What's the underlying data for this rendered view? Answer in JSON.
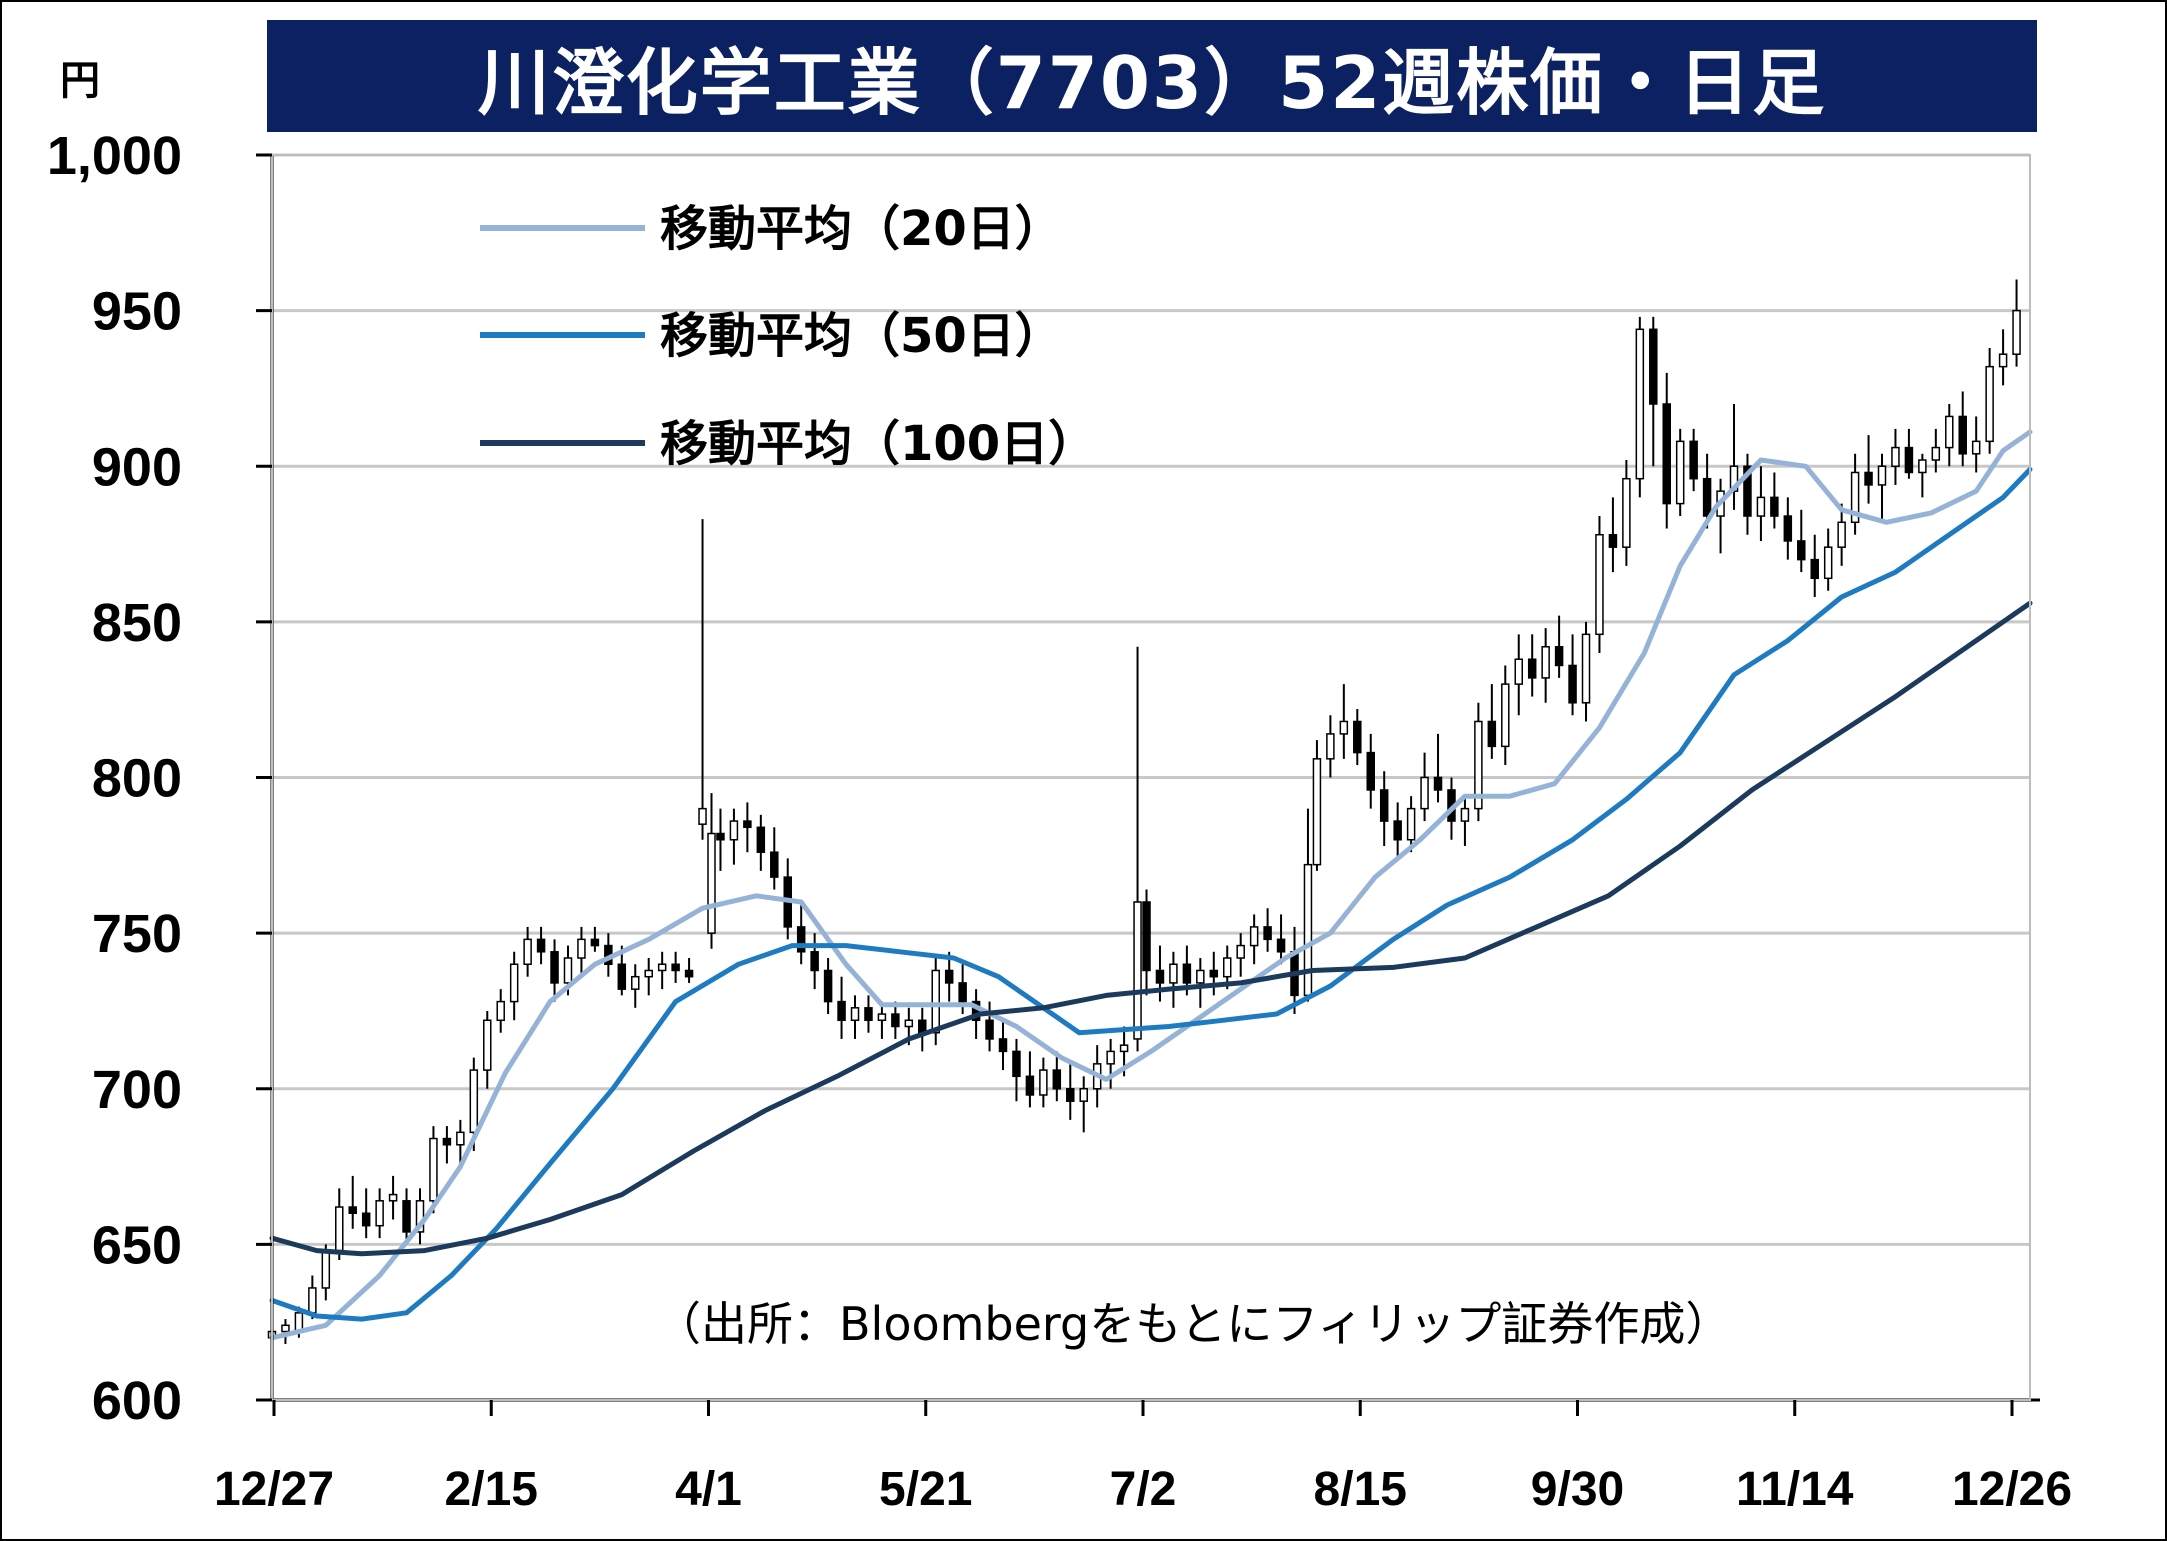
{
  "title": "川澄化学工業（7703）52週株価・日足",
  "unit_label": "円",
  "source_note": "（出所：Bloombergをもとにフィリップ証券作成）",
  "colors": {
    "title_bg": "#0b2161",
    "ma20": "#95b3d7",
    "ma50": "#1f7bc1",
    "ma100": "#1b3a5c",
    "candle_up_fill": "#ffffff",
    "candle_down_fill": "#000000",
    "grid": "#c8c8c8"
  },
  "chart_data": {
    "type": "candlestick",
    "title": "川澄化学工業（7703）52週株価・日足",
    "ylabel": "円",
    "ylim": [
      600,
      1000
    ],
    "yticks": [
      "600",
      "650",
      "700",
      "750",
      "800",
      "850",
      "900",
      "950",
      "1,000"
    ],
    "xticks": [
      "12/27",
      "2/15",
      "4/1",
      "5/21",
      "7/2",
      "8/15",
      "9/30",
      "11/14",
      "12/26"
    ],
    "grid": true,
    "legend_position": "top-left",
    "series": [
      {
        "name": "移動平均（20日）",
        "type": "line",
        "color": "#95b3d7",
        "points": [
          [
            0,
            620
          ],
          [
            12,
            624
          ],
          [
            24,
            640
          ],
          [
            34,
            658
          ],
          [
            42,
            675
          ],
          [
            52,
            705
          ],
          [
            62,
            728
          ],
          [
            72,
            740
          ],
          [
            84,
            748
          ],
          [
            96,
            758
          ],
          [
            108,
            762
          ],
          [
            118,
            760
          ],
          [
            128,
            740
          ],
          [
            136,
            727
          ],
          [
            146,
            727
          ],
          [
            156,
            727
          ],
          [
            166,
            720
          ],
          [
            176,
            710
          ],
          [
            186,
            703
          ],
          [
            196,
            712
          ],
          [
            206,
            722
          ],
          [
            216,
            732
          ],
          [
            226,
            742
          ],
          [
            236,
            750
          ],
          [
            246,
            768
          ],
          [
            256,
            780
          ],
          [
            266,
            794
          ],
          [
            276,
            794
          ],
          [
            286,
            798
          ],
          [
            296,
            816
          ],
          [
            306,
            840
          ],
          [
            314,
            868
          ],
          [
            322,
            887
          ],
          [
            332,
            902
          ],
          [
            342,
            900
          ],
          [
            350,
            886
          ],
          [
            360,
            882
          ],
          [
            370,
            885
          ],
          [
            380,
            892
          ],
          [
            386,
            905
          ],
          [
            392,
            911
          ]
        ]
      },
      {
        "name": "移動平均（50日）",
        "type": "line",
        "color": "#1f7bc1",
        "points": [
          [
            0,
            632
          ],
          [
            10,
            627
          ],
          [
            20,
            626
          ],
          [
            30,
            628
          ],
          [
            40,
            640
          ],
          [
            50,
            655
          ],
          [
            62,
            676
          ],
          [
            76,
            700
          ],
          [
            90,
            728
          ],
          [
            104,
            740
          ],
          [
            116,
            746
          ],
          [
            128,
            746
          ],
          [
            140,
            744
          ],
          [
            152,
            742
          ],
          [
            162,
            736
          ],
          [
            172,
            726
          ],
          [
            180,
            718
          ],
          [
            190,
            719
          ],
          [
            200,
            720
          ],
          [
            212,
            722
          ],
          [
            224,
            724
          ],
          [
            236,
            733
          ],
          [
            250,
            748
          ],
          [
            262,
            759
          ],
          [
            276,
            768
          ],
          [
            290,
            780
          ],
          [
            302,
            793
          ],
          [
            314,
            808
          ],
          [
            326,
            833
          ],
          [
            338,
            844
          ],
          [
            350,
            858
          ],
          [
            362,
            866
          ],
          [
            374,
            878
          ],
          [
            386,
            890
          ],
          [
            392,
            899
          ]
        ]
      },
      {
        "name": "移動平均（100日）",
        "type": "line",
        "color": "#1b3a5c",
        "points": [
          [
            0,
            652
          ],
          [
            10,
            648
          ],
          [
            20,
            647
          ],
          [
            34,
            648
          ],
          [
            48,
            652
          ],
          [
            62,
            658
          ],
          [
            78,
            666
          ],
          [
            94,
            680
          ],
          [
            110,
            693
          ],
          [
            126,
            704
          ],
          [
            142,
            716
          ],
          [
            158,
            724
          ],
          [
            172,
            726
          ],
          [
            186,
            730
          ],
          [
            200,
            732
          ],
          [
            216,
            734
          ],
          [
            232,
            738
          ],
          [
            250,
            739
          ],
          [
            266,
            742
          ],
          [
            282,
            752
          ],
          [
            298,
            762
          ],
          [
            314,
            778
          ],
          [
            330,
            796
          ],
          [
            346,
            811
          ],
          [
            362,
            826
          ],
          [
            378,
            842
          ],
          [
            392,
            856
          ]
        ]
      }
    ],
    "candles": [
      [
        0,
        620,
        628,
        618,
        622
      ],
      [
        3,
        622,
        626,
        618,
        624
      ],
      [
        6,
        622,
        630,
        620,
        628
      ],
      [
        9,
        628,
        640,
        626,
        636
      ],
      [
        12,
        636,
        650,
        632,
        648
      ],
      [
        15,
        648,
        668,
        645,
        662
      ],
      [
        18,
        662,
        672,
        655,
        660
      ],
      [
        21,
        660,
        668,
        652,
        656
      ],
      [
        24,
        656,
        668,
        652,
        664
      ],
      [
        27,
        664,
        672,
        658,
        666
      ],
      [
        30,
        664,
        668,
        650,
        654
      ],
      [
        33,
        654,
        668,
        650,
        664
      ],
      [
        36,
        664,
        688,
        660,
        684
      ],
      [
        39,
        684,
        688,
        676,
        682
      ],
      [
        42,
        682,
        690,
        676,
        686
      ],
      [
        45,
        686,
        710,
        680,
        706
      ],
      [
        48,
        706,
        725,
        700,
        722
      ],
      [
        51,
        722,
        732,
        718,
        728
      ],
      [
        54,
        728,
        744,
        722,
        740
      ],
      [
        57,
        740,
        752,
        736,
        748
      ],
      [
        60,
        748,
        752,
        740,
        744
      ],
      [
        63,
        744,
        748,
        728,
        734
      ],
      [
        66,
        734,
        746,
        730,
        742
      ],
      [
        69,
        742,
        752,
        736,
        748
      ],
      [
        72,
        748,
        752,
        744,
        746
      ],
      [
        75,
        746,
        750,
        736,
        740
      ],
      [
        78,
        740,
        746,
        730,
        732
      ],
      [
        81,
        732,
        740,
        726,
        736
      ],
      [
        84,
        736,
        742,
        730,
        738
      ],
      [
        87,
        738,
        744,
        732,
        740
      ],
      [
        90,
        740,
        744,
        734,
        738
      ],
      [
        93,
        738,
        742,
        734,
        736
      ],
      [
        96,
        785,
        883,
        780,
        790
      ],
      [
        98,
        750,
        795,
        745,
        782
      ],
      [
        100,
        782,
        790,
        770,
        780
      ],
      [
        103,
        780,
        790,
        772,
        786
      ],
      [
        106,
        786,
        792,
        776,
        784
      ],
      [
        109,
        784,
        788,
        770,
        776
      ],
      [
        112,
        776,
        784,
        764,
        768
      ],
      [
        115,
        768,
        774,
        748,
        752
      ],
      [
        118,
        752,
        760,
        740,
        744
      ],
      [
        121,
        744,
        750,
        732,
        738
      ],
      [
        124,
        738,
        742,
        724,
        728
      ],
      [
        127,
        728,
        736,
        716,
        722
      ],
      [
        130,
        722,
        730,
        716,
        726
      ],
      [
        133,
        726,
        730,
        718,
        722
      ],
      [
        136,
        722,
        728,
        716,
        724
      ],
      [
        139,
        724,
        728,
        716,
        720
      ],
      [
        142,
        720,
        726,
        714,
        722
      ],
      [
        145,
        722,
        726,
        712,
        718
      ],
      [
        148,
        718,
        742,
        714,
        738
      ],
      [
        151,
        738,
        744,
        728,
        734
      ],
      [
        154,
        734,
        740,
        724,
        728
      ],
      [
        157,
        728,
        732,
        716,
        722
      ],
      [
        160,
        722,
        728,
        712,
        716
      ],
      [
        163,
        716,
        722,
        706,
        712
      ],
      [
        166,
        712,
        716,
        696,
        704
      ],
      [
        169,
        704,
        712,
        694,
        698
      ],
      [
        172,
        698,
        710,
        694,
        706
      ],
      [
        175,
        706,
        712,
        696,
        700
      ],
      [
        178,
        700,
        708,
        690,
        696
      ],
      [
        181,
        696,
        704,
        686,
        700
      ],
      [
        184,
        700,
        714,
        694,
        708
      ],
      [
        187,
        708,
        716,
        700,
        712
      ],
      [
        190,
        712,
        720,
        704,
        714
      ],
      [
        193,
        716,
        842,
        712,
        760
      ],
      [
        195,
        760,
        764,
        730,
        738
      ],
      [
        198,
        738,
        746,
        728,
        734
      ],
      [
        201,
        734,
        744,
        726,
        740
      ],
      [
        204,
        740,
        746,
        730,
        734
      ],
      [
        207,
        734,
        742,
        726,
        738
      ],
      [
        210,
        738,
        744,
        730,
        736
      ],
      [
        213,
        736,
        746,
        732,
        742
      ],
      [
        216,
        742,
        750,
        736,
        746
      ],
      [
        219,
        746,
        756,
        740,
        752
      ],
      [
        222,
        752,
        758,
        744,
        748
      ],
      [
        225,
        748,
        756,
        740,
        744
      ],
      [
        228,
        744,
        752,
        724,
        730
      ],
      [
        231,
        730,
        790,
        728,
        772
      ],
      [
        233,
        772,
        812,
        770,
        806
      ],
      [
        236,
        806,
        820,
        800,
        814
      ],
      [
        239,
        814,
        830,
        806,
        818
      ],
      [
        242,
        818,
        822,
        804,
        808
      ],
      [
        245,
        808,
        814,
        790,
        796
      ],
      [
        248,
        796,
        802,
        778,
        786
      ],
      [
        251,
        786,
        792,
        774,
        780
      ],
      [
        254,
        780,
        794,
        776,
        790
      ],
      [
        257,
        790,
        808,
        786,
        800
      ],
      [
        260,
        800,
        814,
        792,
        796
      ],
      [
        263,
        796,
        800,
        780,
        786
      ],
      [
        266,
        786,
        794,
        778,
        790
      ],
      [
        269,
        790,
        824,
        786,
        818
      ],
      [
        272,
        818,
        830,
        806,
        810
      ],
      [
        275,
        810,
        836,
        804,
        830
      ],
      [
        278,
        830,
        846,
        820,
        838
      ],
      [
        281,
        838,
        846,
        826,
        832
      ],
      [
        284,
        832,
        848,
        824,
        842
      ],
      [
        287,
        842,
        852,
        832,
        836
      ],
      [
        290,
        836,
        846,
        820,
        824
      ],
      [
        293,
        824,
        850,
        818,
        846
      ],
      [
        296,
        846,
        884,
        840,
        878
      ],
      [
        299,
        878,
        890,
        866,
        874
      ],
      [
        302,
        874,
        902,
        868,
        896
      ],
      [
        305,
        896,
        948,
        890,
        944
      ],
      [
        308,
        944,
        948,
        900,
        920
      ],
      [
        311,
        920,
        930,
        880,
        888
      ],
      [
        314,
        888,
        912,
        884,
        908
      ],
      [
        317,
        908,
        912,
        892,
        896
      ],
      [
        320,
        896,
        904,
        880,
        884
      ],
      [
        323,
        884,
        896,
        872,
        892
      ],
      [
        326,
        892,
        920,
        886,
        900
      ],
      [
        329,
        900,
        904,
        878,
        884
      ],
      [
        332,
        884,
        900,
        876,
        890
      ],
      [
        335,
        890,
        898,
        880,
        884
      ],
      [
        338,
        884,
        890,
        870,
        876
      ],
      [
        341,
        876,
        886,
        866,
        870
      ],
      [
        344,
        870,
        878,
        858,
        864
      ],
      [
        347,
        864,
        880,
        860,
        874
      ],
      [
        350,
        874,
        888,
        868,
        882
      ],
      [
        353,
        882,
        904,
        878,
        898
      ],
      [
        356,
        898,
        910,
        888,
        894
      ],
      [
        359,
        894,
        904,
        882,
        900
      ],
      [
        362,
        900,
        912,
        894,
        906
      ],
      [
        365,
        906,
        912,
        896,
        898
      ],
      [
        368,
        898,
        904,
        890,
        902
      ],
      [
        371,
        902,
        912,
        898,
        906
      ],
      [
        374,
        906,
        920,
        900,
        916
      ],
      [
        377,
        916,
        924,
        900,
        904
      ],
      [
        380,
        904,
        916,
        898,
        908
      ],
      [
        383,
        908,
        938,
        904,
        932
      ],
      [
        386,
        932,
        944,
        926,
        936
      ],
      [
        389,
        936,
        960,
        932,
        950
      ]
    ]
  }
}
